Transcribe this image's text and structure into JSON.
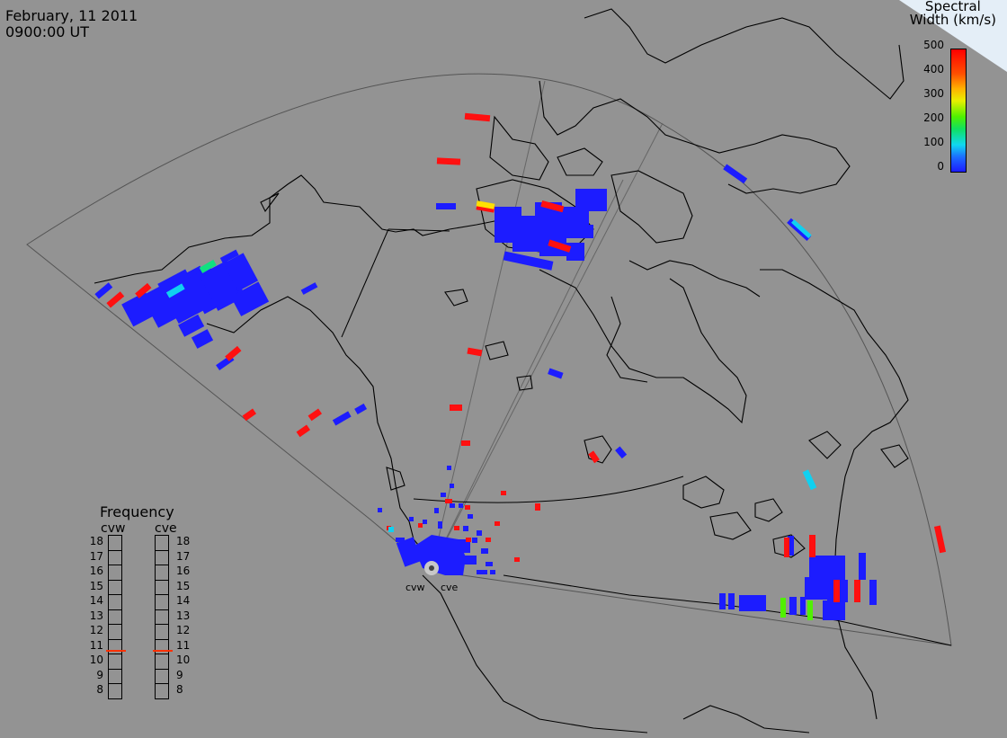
{
  "header": {
    "date": "February, 11 2011",
    "time": "0900:00 UT"
  },
  "legend": {
    "title_line1": "Spectral",
    "title_line2": "Width (km/s)",
    "ticks": [
      "500",
      "400",
      "300",
      "200",
      "100",
      "0"
    ],
    "colors": {
      "low": "#1c1cff",
      "mid_low": "#10d8f0",
      "mid": "#50f000",
      "mid_high": "#ffb000",
      "high": "#ff0000"
    }
  },
  "frequency_panel": {
    "title": "Frequency",
    "radars": [
      {
        "code": "cvw",
        "selected_mhz": 11
      },
      {
        "code": "cve",
        "selected_mhz": 11
      }
    ],
    "scale": [
      "18",
      "17",
      "16",
      "15",
      "14",
      "13",
      "12",
      "11",
      "10",
      "9",
      "8"
    ]
  },
  "sites": [
    {
      "label": "cvw"
    },
    {
      "label": "cve"
    }
  ]
}
